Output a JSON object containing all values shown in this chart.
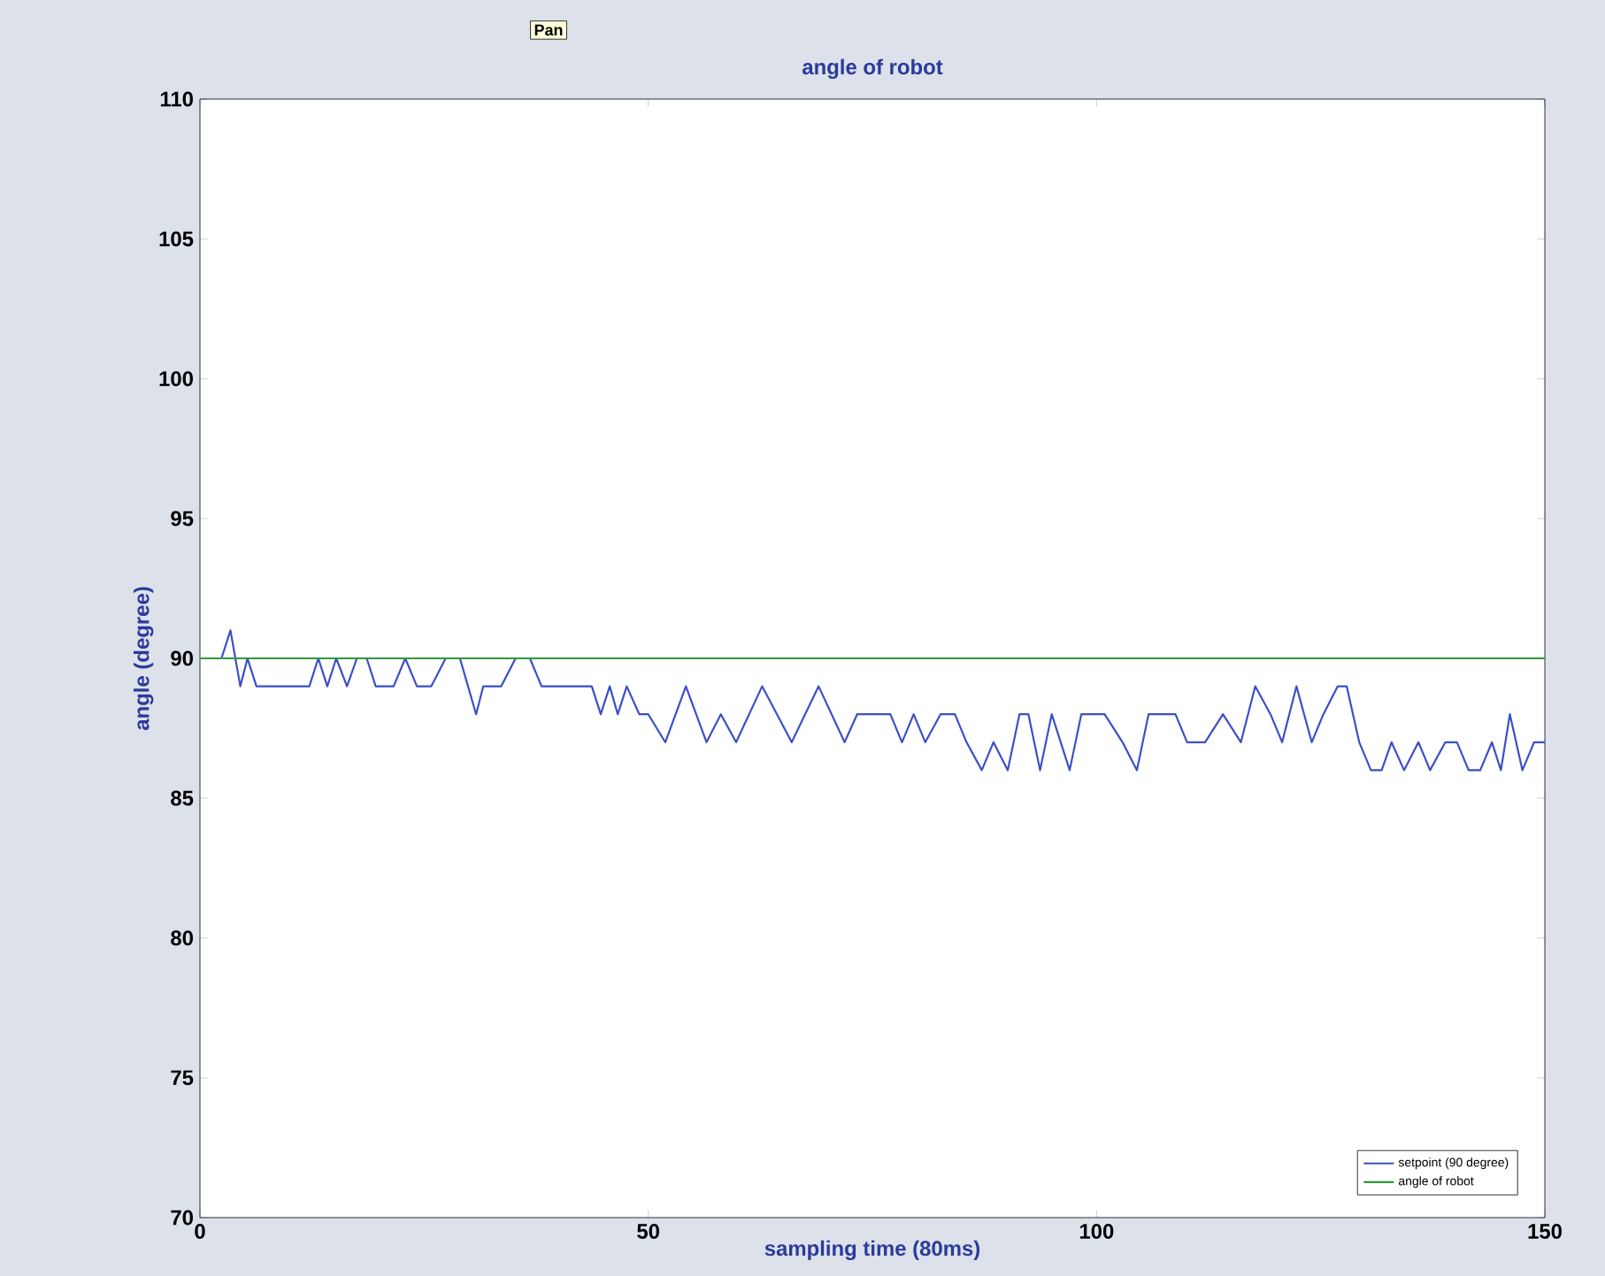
{
  "chart_data": {
    "type": "line",
    "title": "angle of robot",
    "xlabel": "sampling time (80ms)",
    "ylabel": "angle (degree)",
    "annotations": [
      "Pan"
    ],
    "xlim": [
      0,
      150
    ],
    "ylim": [
      70,
      110
    ],
    "xticks": [
      0,
      50,
      100,
      150
    ],
    "yticks": [
      70,
      75,
      80,
      85,
      90,
      95,
      100,
      105,
      110
    ],
    "legend": "bottom right",
    "grid": false,
    "marker": "none",
    "line_style": "solid",
    "series": [
      {
        "name": "setpoint (90 degree)",
        "color": "#3b4fc8",
        "x": [
          2.4,
          3.4,
          4.5,
          5.3,
          6.3,
          12.2,
          13.2,
          14.2,
          15.2,
          16.4,
          17.5,
          18.6,
          19.6,
          21.6,
          22.9,
          24.2,
          25.8,
          27.4,
          29,
          30.8,
          31.6,
          33.6,
          35.2,
          36.8,
          38.1,
          43.7,
          44.7,
          45.7,
          46.6,
          47.6,
          49,
          50,
          51.9,
          54.2,
          56.5,
          58.1,
          59.8,
          62.7,
          66,
          69,
          71.9,
          73.3,
          77,
          78.3,
          79.6,
          80.9,
          82.6,
          84.2,
          85.5,
          87.2,
          88.5,
          90.1,
          91.4,
          92.4,
          93.7,
          95,
          97,
          98.3,
          100.9,
          102.9,
          104.5,
          105.8,
          108.8,
          110.1,
          112.1,
          114.1,
          116.1,
          117.7,
          119.4,
          120.7,
          122.3,
          124,
          125.3,
          126.9,
          127.9,
          129.3,
          130.6,
          131.8,
          132.9,
          134.3,
          135.9,
          137.2,
          138.9,
          140.2,
          141.5,
          142.8,
          144.1,
          145.1,
          146.1,
          147.5,
          148.8,
          150
        ],
        "values": [
          90,
          91,
          89,
          90,
          89,
          89,
          90,
          89,
          90,
          89,
          90,
          90,
          89,
          89,
          90,
          89,
          89,
          90,
          90,
          88,
          89,
          89,
          90,
          90,
          89,
          89,
          88,
          89,
          88,
          89,
          88,
          88,
          87,
          89,
          87,
          88,
          87,
          89,
          87,
          89,
          87,
          88,
          88,
          87,
          88,
          87,
          88,
          88,
          87,
          86,
          87,
          86,
          88,
          88,
          86,
          88,
          86,
          88,
          88,
          87,
          86,
          88,
          88,
          87,
          87,
          88,
          87,
          89,
          88,
          87,
          89,
          87,
          88,
          89,
          89,
          87,
          86,
          86,
          87,
          86,
          87,
          86,
          87,
          87,
          86,
          86,
          87,
          86,
          88,
          86,
          87,
          87
        ]
      },
      {
        "name": "angle of robot",
        "color": "#2e9a3a",
        "x": [
          0,
          150
        ],
        "values": [
          90,
          90
        ]
      }
    ]
  }
}
